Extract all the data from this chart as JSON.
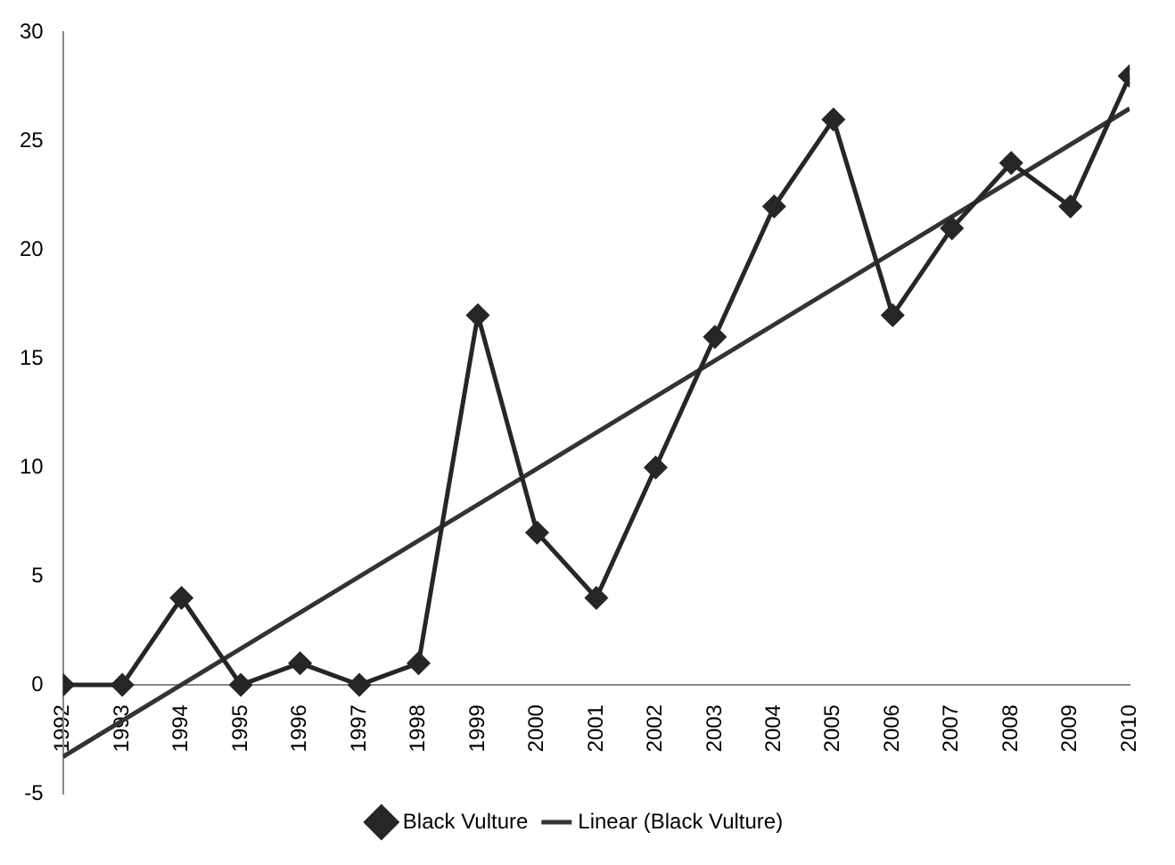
{
  "chart_data": {
    "type": "line",
    "x": [
      1992,
      1993,
      1994,
      1995,
      1996,
      1997,
      1998,
      1999,
      2000,
      2001,
      2002,
      2003,
      2004,
      2005,
      2006,
      2007,
      2008,
      2009,
      2010
    ],
    "series": [
      {
        "name": "Black Vulture",
        "color": "#262626",
        "marker": "diamond",
        "values": [
          0,
          0,
          4,
          0,
          1,
          0,
          1,
          17,
          7,
          4,
          10,
          16,
          22,
          26,
          17,
          21,
          24,
          22,
          28
        ]
      },
      {
        "name": "Linear (Black Vulture)",
        "color": "#333333",
        "marker": "none",
        "x": [
          1992,
          2010
        ],
        "values": [
          -3.3,
          26.5
        ]
      }
    ],
    "xlim": [
      1992,
      2010
    ],
    "xticks": [
      1992,
      1993,
      1994,
      1995,
      1996,
      1997,
      1998,
      1999,
      2000,
      2001,
      2002,
      2003,
      2004,
      2005,
      2006,
      2007,
      2008,
      2009,
      2010
    ],
    "ylim": [
      -5,
      30
    ],
    "yticks": [
      -5,
      0,
      5,
      10,
      15,
      20,
      25,
      30
    ],
    "grid": false,
    "legend": "bottom"
  }
}
